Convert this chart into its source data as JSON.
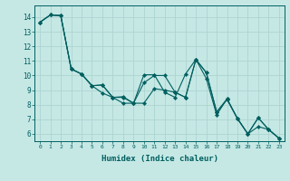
{
  "xlabel": "Humidex (Indice chaleur)",
  "background_color": "#c5e8e5",
  "grid_color_major": "#aed4d0",
  "grid_color_minor": "#c0deda",
  "line_color": "#005f5f",
  "xlim": [
    -0.5,
    23.5
  ],
  "ylim": [
    5.5,
    14.8
  ],
  "yticks": [
    6,
    7,
    8,
    9,
    10,
    11,
    12,
    13,
    14
  ],
  "xticks": [
    0,
    1,
    2,
    3,
    4,
    5,
    6,
    7,
    8,
    9,
    10,
    11,
    12,
    13,
    14,
    15,
    16,
    17,
    18,
    19,
    20,
    21,
    22,
    23
  ],
  "s1_y": [
    13.65,
    14.15,
    14.1,
    10.45,
    10.1,
    9.3,
    9.35,
    8.5,
    8.1,
    8.1,
    8.1,
    9.1,
    9.0,
    8.85,
    8.5,
    11.1,
    9.8,
    7.3,
    8.4,
    7.05,
    6.0,
    7.1,
    6.3,
    5.7
  ],
  "s2_y": [
    13.65,
    14.15,
    14.1,
    10.45,
    10.1,
    9.3,
    9.35,
    8.5,
    8.55,
    8.1,
    10.05,
    10.05,
    8.85,
    8.5,
    10.1,
    11.1,
    10.2,
    7.5,
    8.4,
    7.05,
    6.0,
    7.1,
    6.3,
    5.7
  ],
  "s3_y": [
    13.65,
    14.15,
    14.1,
    10.45,
    10.1,
    9.3,
    8.8,
    8.5,
    8.5,
    8.1,
    9.5,
    10.0,
    10.0,
    8.85,
    8.5,
    11.1,
    10.2,
    7.5,
    8.35,
    7.05,
    6.0,
    6.5,
    6.3,
    5.7
  ]
}
